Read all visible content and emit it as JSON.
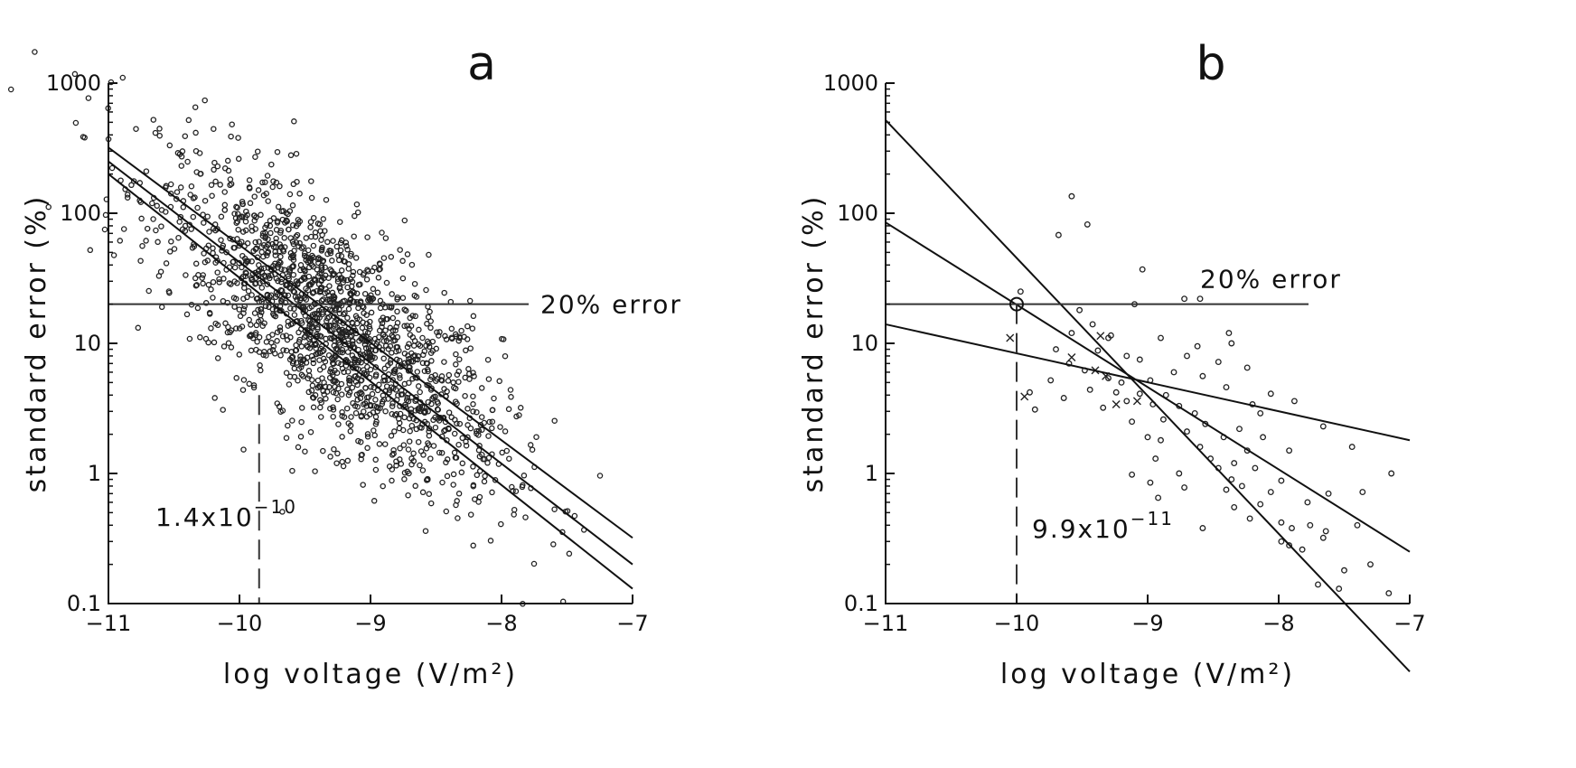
{
  "chart_data": [
    {
      "type": "scatter",
      "panel_label": "a",
      "xlabel": "log voltage (V/m²)",
      "ylabel": "standard error (%)",
      "xlim": [
        -11,
        -7
      ],
      "ylim": [
        0.1,
        1000
      ],
      "yscale": "log",
      "x_ticks": [
        -11,
        -10,
        -9,
        -8,
        -7
      ],
      "x_tick_labels": [
        "−11",
        "−10",
        "−9",
        "−8",
        "−7"
      ],
      "y_ticks": [
        0.1,
        1,
        10,
        100,
        1000
      ],
      "y_tick_labels": [
        "0.1",
        "1",
        "10",
        "100",
        "1000"
      ],
      "grid": false,
      "reference_line": {
        "y": 20,
        "label": "20% error"
      },
      "threshold": {
        "x": -9.85,
        "label_base": "1.4x10",
        "label_exp": "−10"
      },
      "fit_lines": [
        {
          "x": [
            -11,
            -7
          ],
          "y": [
            320,
            0.32
          ]
        },
        {
          "x": [
            -11,
            -7
          ],
          "y": [
            250,
            0.2
          ]
        },
        {
          "x": [
            -11,
            -7
          ],
          "y": [
            200,
            0.13
          ]
        }
      ],
      "scatter_model": {
        "n": 1700,
        "center_x": -9.3,
        "spread_x": 0.65,
        "log_slope": -0.72,
        "log_intercept_at_-11": 2.35,
        "log_spread": 0.42
      }
    },
    {
      "type": "scatter",
      "panel_label": "b",
      "xlabel": "log voltage (V/m²)",
      "ylabel": "standard error (%)",
      "xlim": [
        -11,
        -7
      ],
      "ylim": [
        0.1,
        1000
      ],
      "yscale": "log",
      "x_ticks": [
        -11,
        -10,
        -9,
        -8,
        -7
      ],
      "x_tick_labels": [
        "−11",
        "−10",
        "−9",
        "−8",
        "−7"
      ],
      "y_ticks": [
        0.1,
        1,
        10,
        100,
        1000
      ],
      "y_tick_labels": [
        "0.1",
        "1",
        "10",
        "100",
        "1000"
      ],
      "grid": false,
      "reference_line": {
        "y": 20,
        "label": "20% error"
      },
      "threshold": {
        "x": -10,
        "label_base": "9.9x10",
        "label_exp": "−11"
      },
      "highlight_point": {
        "x": -10,
        "y": 20
      },
      "fit_lines": [
        {
          "x": [
            -11,
            -7
          ],
          "y": [
            520,
            0.03
          ]
        },
        {
          "x": [
            -11,
            -7
          ],
          "y": [
            85,
            0.25
          ]
        },
        {
          "x": [
            -11,
            -7
          ],
          "y": [
            14,
            1.8
          ]
        }
      ],
      "points": [
        {
          "x": -9.58,
          "y": 135
        },
        {
          "x": -9.46,
          "y": 82
        },
        {
          "x": -9.68,
          "y": 68
        },
        {
          "x": -9.04,
          "y": 37
        },
        {
          "x": -9.97,
          "y": 25
        },
        {
          "x": -8.72,
          "y": 22
        },
        {
          "x": -8.6,
          "y": 22
        },
        {
          "x": -9.1,
          "y": 20
        },
        {
          "x": -9.52,
          "y": 18
        },
        {
          "x": -9.42,
          "y": 14
        },
        {
          "x": -9.58,
          "y": 12
        },
        {
          "x": -9.3,
          "y": 11
        },
        {
          "x": -9.28,
          "y": 11.5
        },
        {
          "x": -8.9,
          "y": 11
        },
        {
          "x": -8.62,
          "y": 9.5
        },
        {
          "x": -8.38,
          "y": 12
        },
        {
          "x": -8.36,
          "y": 10
        },
        {
          "x": -9.7,
          "y": 9
        },
        {
          "x": -9.38,
          "y": 8.8
        },
        {
          "x": -9.16,
          "y": 8
        },
        {
          "x": -9.06,
          "y": 7.5
        },
        {
          "x": -8.7,
          "y": 8
        },
        {
          "x": -8.46,
          "y": 7.2
        },
        {
          "x": -8.24,
          "y": 6.5
        },
        {
          "x": -9.6,
          "y": 7
        },
        {
          "x": -9.48,
          "y": 6.2
        },
        {
          "x": -9.3,
          "y": 5.4
        },
        {
          "x": -9.2,
          "y": 5
        },
        {
          "x": -8.98,
          "y": 5.2
        },
        {
          "x": -8.8,
          "y": 6
        },
        {
          "x": -8.58,
          "y": 5.6
        },
        {
          "x": -9.74,
          "y": 5.2
        },
        {
          "x": -9.9,
          "y": 4.2
        },
        {
          "x": -9.44,
          "y": 4.4
        },
        {
          "x": -9.24,
          "y": 4.2
        },
        {
          "x": -9.06,
          "y": 4.1
        },
        {
          "x": -8.86,
          "y": 4
        },
        {
          "x": -8.4,
          "y": 4.6
        },
        {
          "x": -8.06,
          "y": 4.1
        },
        {
          "x": -7.88,
          "y": 3.6
        },
        {
          "x": -9.64,
          "y": 3.8
        },
        {
          "x": -9.16,
          "y": 3.6
        },
        {
          "x": -8.96,
          "y": 3.4
        },
        {
          "x": -8.76,
          "y": 3.3
        },
        {
          "x": -8.2,
          "y": 3.4
        },
        {
          "x": -9.86,
          "y": 3.1
        },
        {
          "x": -9.34,
          "y": 3.2
        },
        {
          "x": -8.64,
          "y": 2.9
        },
        {
          "x": -8.14,
          "y": 2.9
        },
        {
          "x": -7.66,
          "y": 2.3
        },
        {
          "x": -9.12,
          "y": 2.5
        },
        {
          "x": -8.88,
          "y": 2.6
        },
        {
          "x": -8.56,
          "y": 2.4
        },
        {
          "x": -8.3,
          "y": 2.2
        },
        {
          "x": -9.0,
          "y": 1.9
        },
        {
          "x": -8.9,
          "y": 1.8
        },
        {
          "x": -8.7,
          "y": 2.1
        },
        {
          "x": -8.42,
          "y": 1.9
        },
        {
          "x": -8.12,
          "y": 1.9
        },
        {
          "x": -7.44,
          "y": 1.6
        },
        {
          "x": -8.6,
          "y": 1.6
        },
        {
          "x": -8.24,
          "y": 1.5
        },
        {
          "x": -7.92,
          "y": 1.5
        },
        {
          "x": -8.94,
          "y": 1.3
        },
        {
          "x": -8.52,
          "y": 1.3
        },
        {
          "x": -8.34,
          "y": 1.2
        },
        {
          "x": -7.14,
          "y": 1.0
        },
        {
          "x": -9.12,
          "y": 0.98
        },
        {
          "x": -8.76,
          "y": 1.0
        },
        {
          "x": -8.46,
          "y": 1.1
        },
        {
          "x": -8.18,
          "y": 1.1
        },
        {
          "x": -7.98,
          "y": 0.88
        },
        {
          "x": -8.98,
          "y": 0.85
        },
        {
          "x": -8.72,
          "y": 0.78
        },
        {
          "x": -8.4,
          "y": 0.75
        },
        {
          "x": -8.28,
          "y": 0.8
        },
        {
          "x": -8.06,
          "y": 0.72
        },
        {
          "x": -7.62,
          "y": 0.7
        },
        {
          "x": -7.36,
          "y": 0.72
        },
        {
          "x": -8.92,
          "y": 0.65
        },
        {
          "x": -8.34,
          "y": 0.55
        },
        {
          "x": -8.14,
          "y": 0.58
        },
        {
          "x": -7.78,
          "y": 0.6
        },
        {
          "x": -7.4,
          "y": 0.4
        },
        {
          "x": -8.22,
          "y": 0.45
        },
        {
          "x": -7.98,
          "y": 0.42
        },
        {
          "x": -7.76,
          "y": 0.4
        },
        {
          "x": -7.64,
          "y": 0.36
        },
        {
          "x": -7.9,
          "y": 0.38
        },
        {
          "x": -8.58,
          "y": 0.38
        },
        {
          "x": -7.92,
          "y": 0.28
        },
        {
          "x": -7.66,
          "y": 0.32
        },
        {
          "x": -7.5,
          "y": 0.18
        },
        {
          "x": -7.3,
          "y": 0.2
        },
        {
          "x": -7.7,
          "y": 0.14
        },
        {
          "x": -7.54,
          "y": 0.13
        },
        {
          "x": -7.16,
          "y": 0.12
        },
        {
          "x": -7.98,
          "y": 0.3
        },
        {
          "x": -7.82,
          "y": 0.26
        },
        {
          "x": -8.36,
          "y": 0.9
        }
      ],
      "cross_points": [
        {
          "x": -10.05,
          "y": 11
        },
        {
          "x": -9.58,
          "y": 7.8
        },
        {
          "x": -9.4,
          "y": 6.2
        },
        {
          "x": -9.94,
          "y": 3.9
        },
        {
          "x": -9.24,
          "y": 3.4
        },
        {
          "x": -9.08,
          "y": 3.6
        },
        {
          "x": -9.36,
          "y": 11.4
        },
        {
          "x": -9.32,
          "y": 5.6
        }
      ]
    }
  ]
}
